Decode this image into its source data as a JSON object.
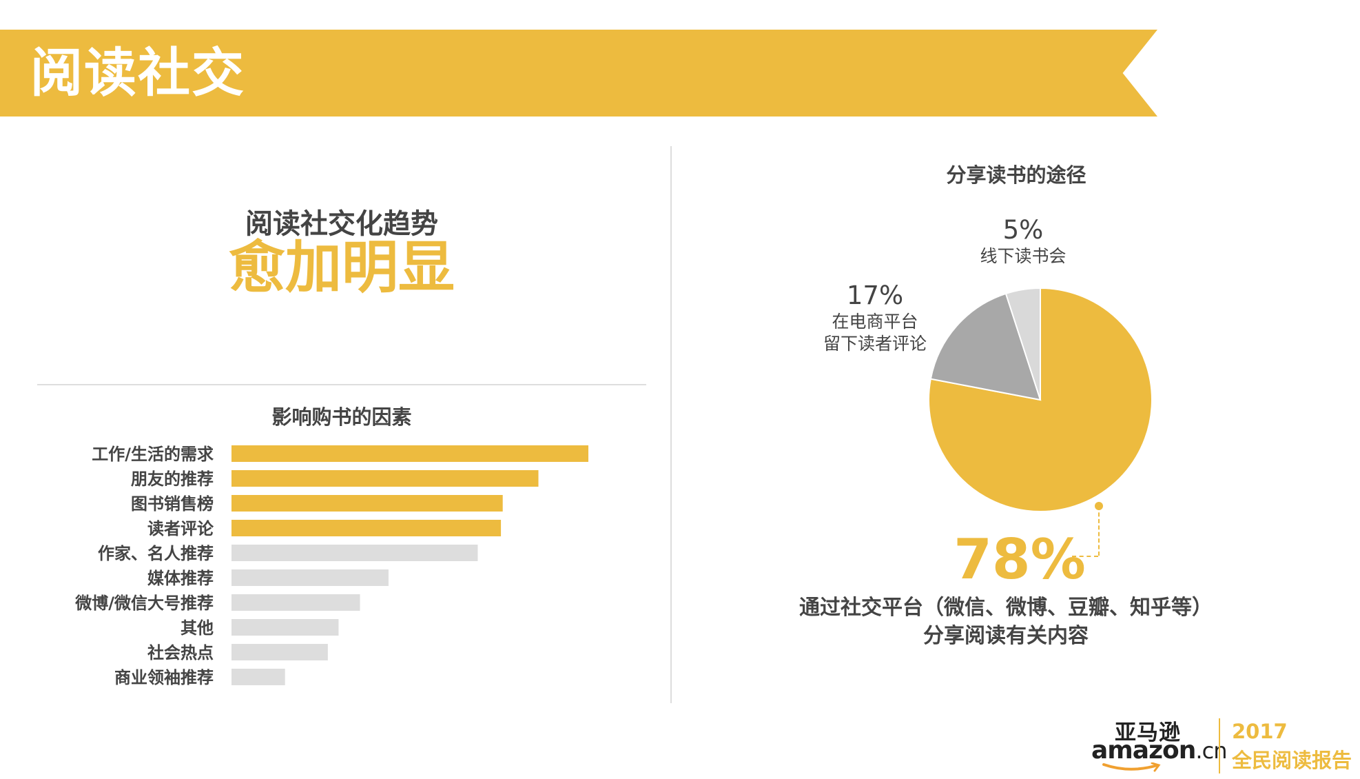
{
  "banner": {
    "title": "阅读社交"
  },
  "trend": {
    "line1": "阅读社交化趋势",
    "line2": "愈加明显"
  },
  "colors": {
    "accent": "#EDBB3F",
    "grey_bar": "#DDDDDD",
    "pie_grey": "#A8A8A8",
    "pie_light": "#D9D9D9",
    "text": "#444444"
  },
  "chart_data": [
    {
      "type": "bar",
      "orientation": "horizontal",
      "title": "影响购书的因素",
      "categories": [
        "工作/生活的需求",
        "朋友的推荐",
        "图书销售榜",
        "读者评论",
        "作家、名人推荐",
        "媒体推荐",
        "微博/微信大号推荐",
        "其他",
        "社会热点",
        "商业领袖推荐"
      ],
      "values": [
        100,
        86,
        76,
        75.5,
        69,
        44,
        36,
        30,
        27,
        15
      ],
      "highlighted": [
        true,
        true,
        true,
        true,
        false,
        false,
        false,
        false,
        false,
        false
      ],
      "xlim": [
        0,
        100
      ],
      "xlabel": "",
      "ylabel": "",
      "grid": false
    },
    {
      "type": "pie",
      "title": "分享读书的途径",
      "slices": [
        {
          "label": "通过社交平台（微信、微博、豆瓣、知乎等）分享阅读有关内容",
          "value": 78,
          "value_label": "78%",
          "desc_line1": "通过社交平台（微信、微博、豆瓣、知乎等）",
          "desc_line2": "分享阅读有关内容",
          "color": "#EDBB3F"
        },
        {
          "label": "在电商平台留下读者评论",
          "value": 17,
          "value_label": "17%",
          "desc_line1": "在电商平台",
          "desc_line2": "留下读者评论",
          "color": "#A8A8A8"
        },
        {
          "label": "线下读书会",
          "value": 5,
          "value_label": "5%",
          "desc_line1": "线下读书会",
          "color": "#D9D9D9"
        }
      ]
    }
  ],
  "logo": {
    "cn": "亚马逊",
    "en_main": "amazon",
    "en_suffix": ".cn"
  },
  "report": {
    "year": "2017",
    "name": "全民阅读报告"
  }
}
